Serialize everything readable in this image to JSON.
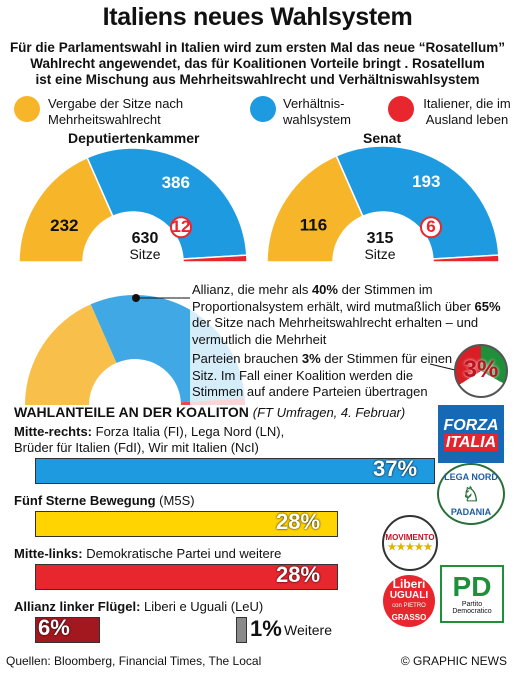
{
  "title": "Italiens neues Wahlsystem",
  "subtitle_lines": [
    "Für die Parlamentswahl in Italien wird zum ersten Mal das neue “Rosatellum”",
    "Wahlrecht angewendet, das für Koalitionen Vorteile bringt . Rosatellum",
    "ist eine Mischung aus Mehrheitswahlrecht und Verhältniswahlsystem"
  ],
  "legend": [
    {
      "label": "Vergabe der Sitze nach Mehrheitswahlrecht",
      "color": "#f7b52a"
    },
    {
      "label": "Verhältnis-wahlsystem",
      "color": "#1e9ae0"
    },
    {
      "label": "Italiener, die im Ausland leben",
      "color": "#e8262e"
    }
  ],
  "chart_data": [
    {
      "type": "pie",
      "title": "Deputiertenkammer",
      "categories": [
        "Mehrheitswahlrecht",
        "Verhältniswahlsystem",
        "Ausland"
      ],
      "values": [
        232,
        386,
        12
      ],
      "total": 630,
      "total_unit": "Sitze"
    },
    {
      "type": "pie",
      "title": "Senat",
      "categories": [
        "Mehrheitswahlrecht",
        "Verhältniswahlsystem",
        "Ausland"
      ],
      "values": [
        116,
        193,
        6
      ],
      "total": 315,
      "total_unit": "Sitze"
    },
    {
      "type": "bar",
      "title": "WAHLANTEILE AN DER KOALITON",
      "subtitle": "(FT Umfragen, 4. Februar)",
      "categories": [
        "Mitte-rechts",
        "Fünf Sterne Bewegung",
        "Mitte-links",
        "Allianz linker Flügel",
        "Weitere"
      ],
      "values": [
        37,
        28,
        28,
        6,
        1
      ],
      "unit": "%"
    }
  ],
  "annotations": {
    "coalition_pre": "Allianz, die mehr als ",
    "coalition_bold1": "40%",
    "coalition_mid": " der Stimmen im Proportionalsystem erhält, wird mutmaßlich über ",
    "coalition_bold2": "65%",
    "coalition_post": " der Sitze nach Mehrheitswahlrecht erhalten – und vermutlich die Mehrheit",
    "threshold_pre": "Parteien brauchen ",
    "threshold_bold": "3%",
    "threshold_post": " der Stimmen für einen Sitz. Im Fall einer Koalition werden die Stimmen auf andere Parteien übertragen",
    "threshold_badge": "3%"
  },
  "parties": {
    "r1_bold": "Mitte-rechts:",
    "r1_text": " Forza Italia (FI), Lega Nord (LN),",
    "r1_text2": "Brüder für Italien (FdI), Wir mit Italien (NcI)",
    "r1_pct": "37%",
    "r2_bold": "Fünf Sterne Bewegung",
    "r2_text": " (M5S)",
    "r2_pct": "28%",
    "r3_bold": "Mitte-links:",
    "r3_text": " Demokratische Partei und weitere",
    "r3_pct": "28%",
    "r4_bold": "Allianz linker Flügel:",
    "r4_text": " Liberi e Uguali (LeU)",
    "r4_pct": "6%",
    "r5_pct": "1%",
    "r5_label": " Weitere"
  },
  "logos": {
    "fi1": "FORZA",
    "fi2": "ITALIA",
    "lega1": "LEGA NORD",
    "lega2": "PADANIA",
    "m5s": "MOVIMENTO",
    "leu1": "Liberi",
    "leu2": "UGUALI",
    "leu3": "con PIETRO",
    "leu4": "GRASSO",
    "pd1": "PD",
    "pd2": "Partito Democratico"
  },
  "colors": {
    "orange": "#f7b52a",
    "blue": "#1e9ae0",
    "red": "#e8262e",
    "yellow": "#ffd400",
    "darkred": "#a3181f",
    "grey": "#8a8a8a"
  },
  "footer": {
    "sources": "Quellen: Bloomberg, Financial Times, The Local",
    "credit": "© GRAPHIC NEWS"
  }
}
